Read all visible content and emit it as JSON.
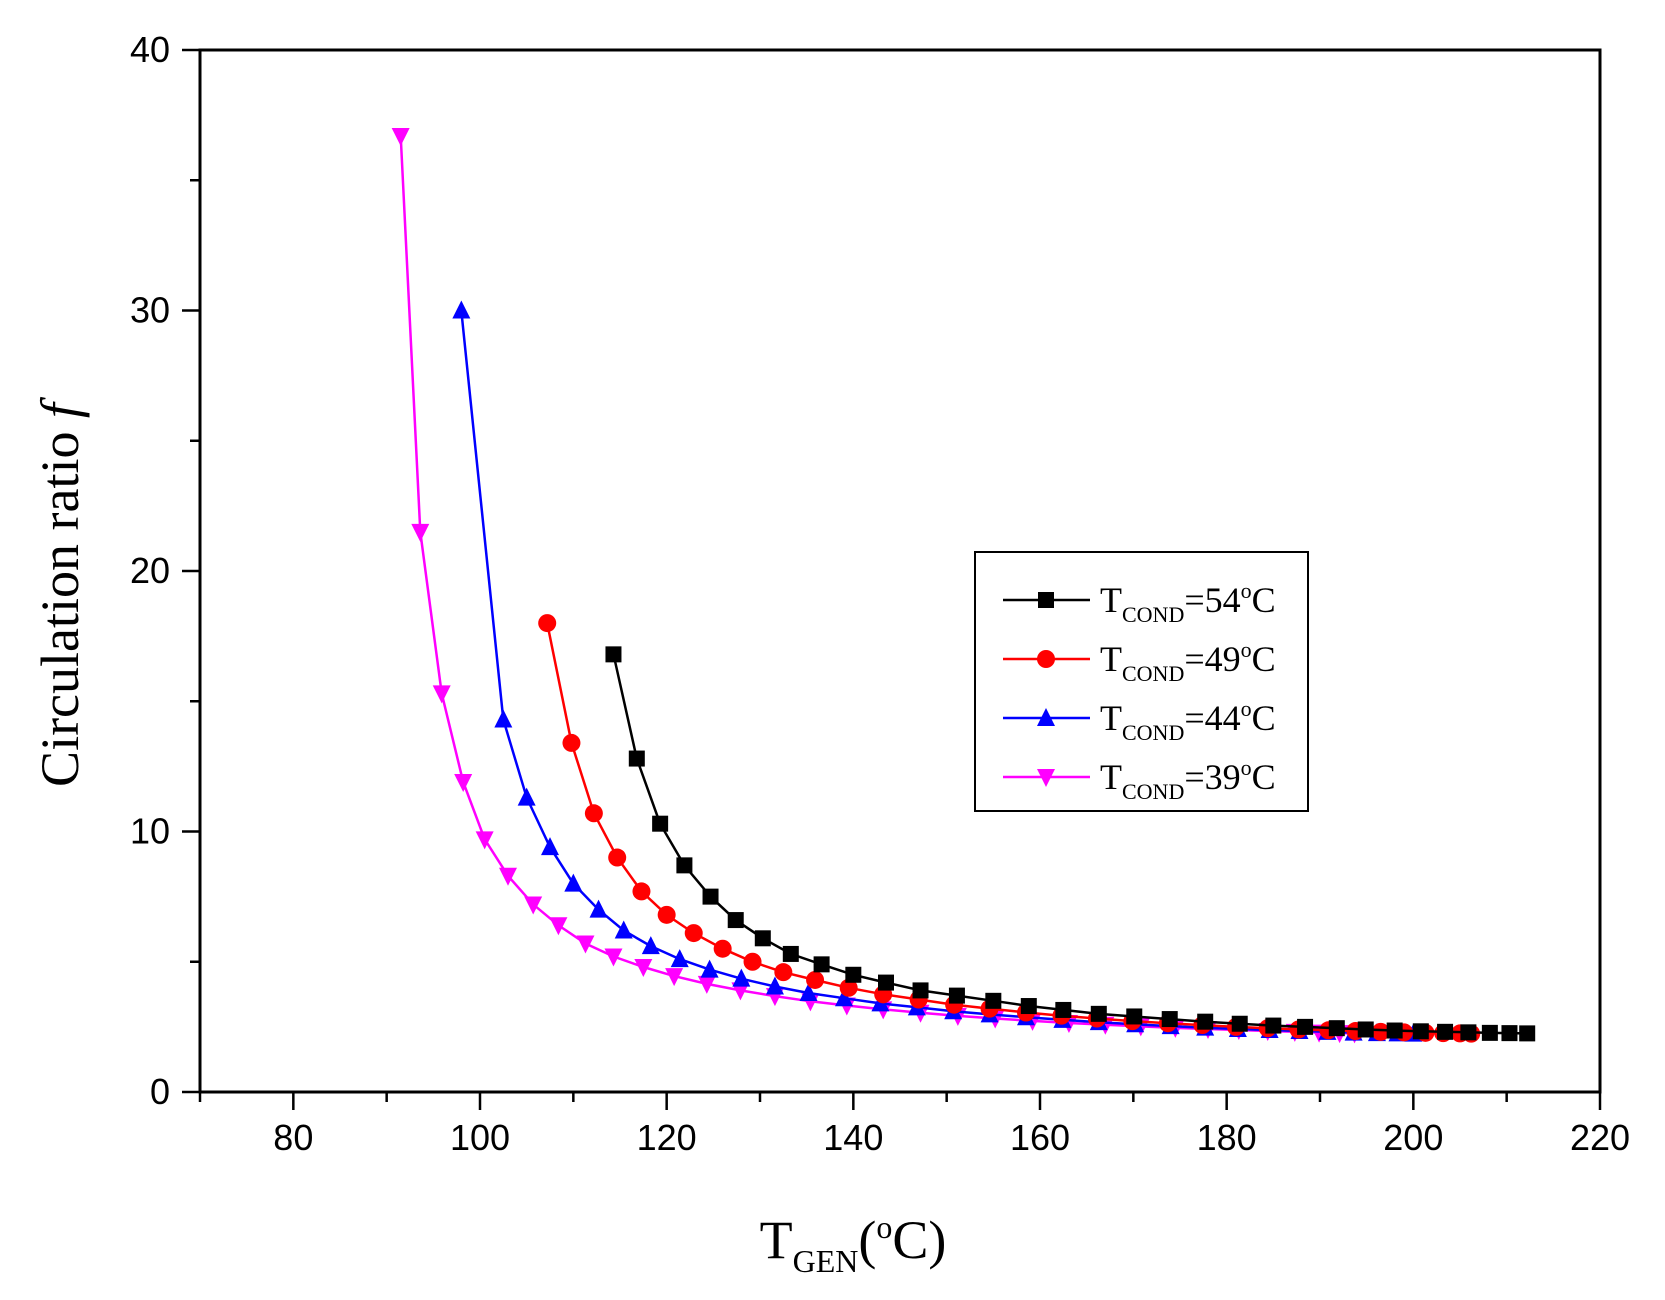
{
  "chart_data": {
    "type": "line",
    "title": "",
    "xlabel": {
      "main": "T",
      "sub": "GEN",
      "rest": "(",
      "sup": "o",
      "tail": "C)"
    },
    "ylabel": {
      "main": "Circulation ratio ",
      "italic": "f"
    },
    "xlim": [
      70,
      220
    ],
    "ylim": [
      0,
      40
    ],
    "xticks": [
      80,
      100,
      120,
      140,
      160,
      180,
      200,
      220
    ],
    "yticks": [
      0,
      10,
      20,
      30,
      40
    ],
    "grid": false,
    "legend_position": "center-right",
    "series": [
      {
        "name": "TCOND=54oC",
        "label": {
          "main": "T",
          "sub": "COND",
          "eq": "=54",
          "sup": "o",
          "tail": "C"
        },
        "color": "#000000",
        "marker": "square",
        "x": [
          114.3,
          116.8,
          119.3,
          121.9,
          124.7,
          127.4,
          130.3,
          133.3,
          136.6,
          140.0,
          143.5,
          147.2,
          151.1,
          155.0,
          158.8,
          162.5,
          166.3,
          170.1,
          173.9,
          177.7,
          181.4,
          185.0,
          188.4,
          191.8,
          194.9,
          198.0,
          200.8,
          203.4,
          205.9,
          208.2,
          210.3,
          212.2
        ],
        "y": [
          16.8,
          12.8,
          10.3,
          8.7,
          7.5,
          6.6,
          5.9,
          5.3,
          4.9,
          4.5,
          4.2,
          3.9,
          3.7,
          3.5,
          3.3,
          3.15,
          3.0,
          2.9,
          2.8,
          2.7,
          2.62,
          2.55,
          2.5,
          2.45,
          2.4,
          2.36,
          2.33,
          2.31,
          2.29,
          2.27,
          2.26,
          2.25
        ]
      },
      {
        "name": "TCOND=49oC",
        "label": {
          "main": "T",
          "sub": "COND",
          "eq": "=49",
          "sup": "o",
          "tail": "C"
        },
        "color": "#ff0000",
        "marker": "circle",
        "x": [
          107.2,
          109.8,
          112.2,
          114.7,
          117.3,
          120.0,
          122.9,
          126.0,
          129.2,
          132.5,
          135.9,
          139.5,
          143.2,
          147.0,
          150.8,
          154.6,
          158.5,
          162.3,
          166.1,
          169.9,
          173.7,
          177.4,
          181.0,
          184.4,
          187.7,
          190.9,
          193.8,
          196.5,
          199.0,
          201.3,
          203.2,
          205.0,
          206.2
        ],
        "y": [
          18.0,
          13.4,
          10.7,
          9.0,
          7.7,
          6.8,
          6.1,
          5.5,
          5.0,
          4.6,
          4.3,
          4.0,
          3.75,
          3.55,
          3.35,
          3.2,
          3.05,
          2.93,
          2.82,
          2.72,
          2.64,
          2.57,
          2.5,
          2.45,
          2.4,
          2.37,
          2.34,
          2.31,
          2.29,
          2.27,
          2.26,
          2.25,
          2.24
        ]
      },
      {
        "name": "TCOND=44oC",
        "label": {
          "main": "T",
          "sub": "COND",
          "eq": "=44",
          "sup": "o",
          "tail": "C"
        },
        "color": "#0000ff",
        "marker": "triangle-up",
        "x": [
          98.0,
          102.5,
          105.0,
          107.5,
          110.0,
          112.7,
          115.4,
          118.3,
          121.4,
          124.6,
          128.0,
          131.6,
          135.2,
          139.0,
          142.9,
          146.8,
          150.7,
          154.6,
          158.5,
          162.4,
          166.3,
          170.2,
          174.0,
          177.7,
          181.2,
          184.6,
          187.8,
          190.8,
          193.6,
          196.1,
          198.3,
          200.0
        ],
        "y": [
          30.0,
          14.3,
          11.3,
          9.4,
          8.0,
          7.0,
          6.2,
          5.6,
          5.1,
          4.7,
          4.35,
          4.05,
          3.8,
          3.6,
          3.4,
          3.25,
          3.1,
          2.98,
          2.87,
          2.77,
          2.68,
          2.6,
          2.53,
          2.47,
          2.42,
          2.38,
          2.34,
          2.31,
          2.28,
          2.26,
          2.25,
          2.24
        ]
      },
      {
        "name": "TCOND=39oC",
        "label": {
          "main": "T",
          "sub": "COND",
          "eq": "=39",
          "sup": "o",
          "tail": "C"
        },
        "color": "#ff00ff",
        "marker": "triangle-down",
        "x": [
          91.5,
          93.6,
          95.9,
          98.2,
          100.5,
          103.0,
          105.7,
          108.4,
          111.3,
          114.3,
          117.5,
          120.8,
          124.3,
          127.9,
          131.6,
          135.4,
          139.3,
          143.2,
          147.2,
          151.2,
          155.2,
          159.2,
          163.1,
          167.0,
          170.8,
          174.5,
          178.0,
          181.3,
          184.4,
          187.3,
          189.9,
          192.1,
          193.7
        ],
        "y": [
          36.7,
          21.5,
          15.3,
          11.9,
          9.7,
          8.3,
          7.2,
          6.4,
          5.7,
          5.2,
          4.8,
          4.45,
          4.15,
          3.9,
          3.68,
          3.48,
          3.32,
          3.17,
          3.04,
          2.92,
          2.82,
          2.73,
          2.65,
          2.58,
          2.52,
          2.46,
          2.42,
          2.38,
          2.34,
          2.31,
          2.28,
          2.26,
          2.25
        ]
      }
    ]
  }
}
